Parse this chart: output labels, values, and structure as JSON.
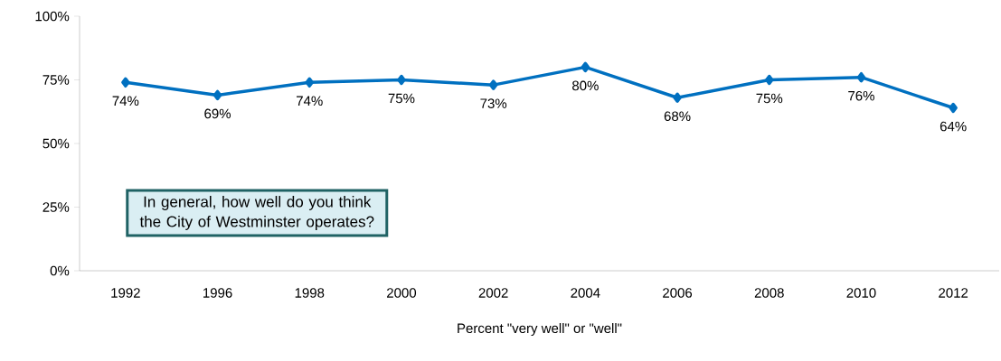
{
  "chart_data": {
    "type": "line",
    "xlabel": "Percent \"very well\" or \"well\"",
    "categories": [
      "1992",
      "1996",
      "1998",
      "2000",
      "2002",
      "2004",
      "2006",
      "2008",
      "2010",
      "2012"
    ],
    "values": [
      74,
      69,
      74,
      75,
      73,
      80,
      68,
      75,
      76,
      64
    ],
    "value_labels": [
      "74%",
      "69%",
      "74%",
      "75%",
      "73%",
      "80%",
      "68%",
      "75%",
      "76%",
      "64%"
    ],
    "color": "#0070c0",
    "marker": "diamond",
    "line_style": "solid",
    "ylim": [
      0,
      100
    ],
    "yticks": [
      {
        "value": 0,
        "label": "0%"
      },
      {
        "value": 25,
        "label": "25%"
      },
      {
        "value": 50,
        "label": "50%"
      },
      {
        "value": 75,
        "label": "75%"
      },
      {
        "value": 100,
        "label": "100%"
      }
    ],
    "annotations": [
      "In general, how well do you think the City of Westminster operates?"
    ]
  }
}
